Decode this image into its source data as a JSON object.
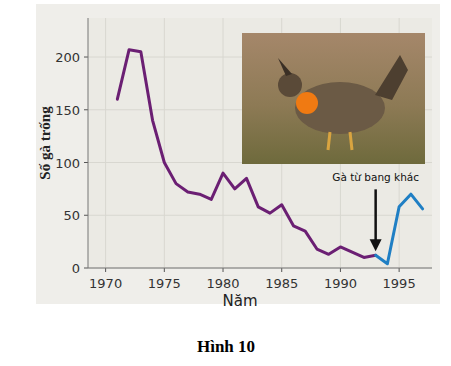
{
  "chart_data": {
    "type": "line",
    "caption": "Hình 10",
    "x_label": "Năm",
    "y_label": "Số gà trống",
    "x": [
      1971,
      1972,
      1973,
      1974,
      1975,
      1976,
      1977,
      1978,
      1979,
      1980,
      1981,
      1982,
      1983,
      1984,
      1985,
      1986,
      1987,
      1988,
      1989,
      1990,
      1991,
      1992,
      1993,
      1994,
      1995,
      1996,
      1997
    ],
    "series": [
      {
        "color": "#6b1f73",
        "values": [
          160,
          207,
          205,
          140,
          100,
          80,
          72,
          70,
          65,
          90,
          75,
          85,
          58,
          52,
          60,
          40,
          35,
          18,
          13,
          20,
          15,
          10,
          12,
          null,
          null,
          null,
          null
        ]
      },
      {
        "color": "#1f7fc4",
        "values": [
          null,
          null,
          null,
          null,
          null,
          null,
          null,
          null,
          null,
          null,
          null,
          null,
          null,
          null,
          null,
          null,
          null,
          null,
          null,
          null,
          null,
          null,
          12,
          4,
          58,
          70,
          56
        ]
      }
    ],
    "xlim": [
      1968.5,
      1997.8
    ],
    "ylim": [
      0,
      237
    ],
    "xticks": [
      1970,
      1975,
      1980,
      1985,
      1990,
      1995
    ],
    "yticks": [
      0,
      50,
      100,
      150,
      200
    ],
    "grid": true,
    "annotations": [
      {
        "text": "Gà từ bang khác",
        "x": 1993,
        "y": 12
      }
    ]
  }
}
